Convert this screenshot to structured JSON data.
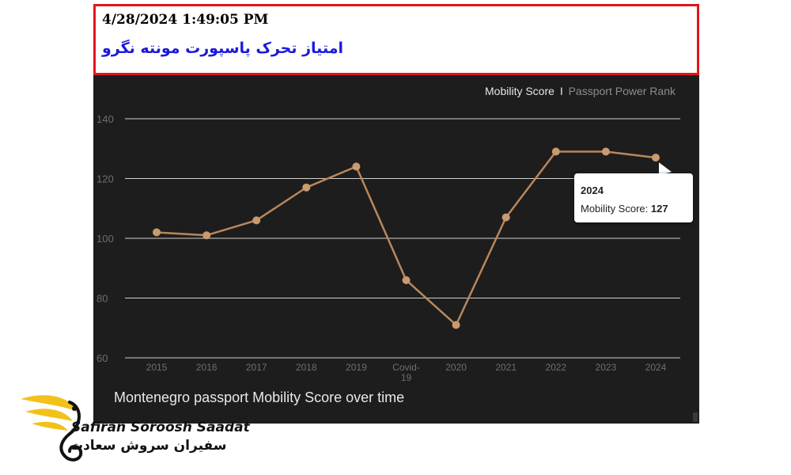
{
  "header": {
    "timestamp": "4/28/2024 1:49:05 PM",
    "title_fa": "امتیاز تحرک پاسپورت مونته نگرو"
  },
  "legend": {
    "active": "Mobility Score",
    "separator": "I",
    "inactive": "Passport Power Rank"
  },
  "caption": "Montenegro passport Mobility Score over time",
  "tooltip": {
    "year": "2024",
    "label": "Mobility Score:",
    "value": "127"
  },
  "brand": {
    "name_en": "Safiran Soroosh Saadat",
    "name_fa": "سفیران سروش سعادت",
    "colors": {
      "wing": "#f2c21b",
      "text": "#111111"
    }
  },
  "chart_data": {
    "type": "line",
    "categories": [
      "2015",
      "2016",
      "2017",
      "2018",
      "2019",
      "Covid-19",
      "2020",
      "2021",
      "2022",
      "2023",
      "2024"
    ],
    "series": [
      {
        "name": "Mobility Score",
        "values": [
          102,
          101,
          106,
          117,
          124,
          86,
          71,
          107,
          129,
          129,
          127
        ]
      }
    ],
    "yticks": [
      60,
      80,
      100,
      120,
      140
    ],
    "ylim": [
      60,
      140
    ],
    "grid": true,
    "colors": {
      "line": "#b8875c",
      "point": "#c99a70",
      "grid": "#d0d0d0",
      "background": "#1e1d1d",
      "tick": "#6e6e6e"
    }
  }
}
